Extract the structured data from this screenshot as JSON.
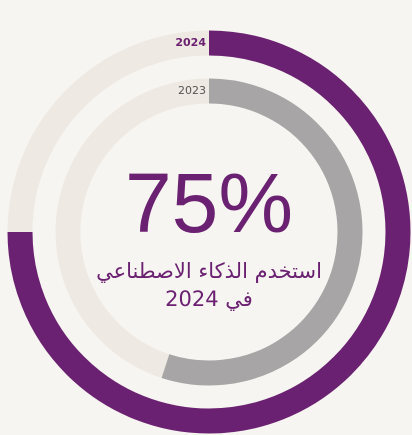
{
  "chart_data": {
    "type": "radial",
    "ylim": [
      0,
      100
    ],
    "series": [
      {
        "name": "2024",
        "color": "#6b2171",
        "values": [
          75
        ],
        "value_labels": [
          "75%"
        ]
      },
      {
        "name": "2023",
        "color": "#a7a5a5",
        "values": [
          55
        ]
      }
    ],
    "annotation": [
      "استخدم الذكاء الاصطناعي",
      "في 2024"
    ]
  }
}
